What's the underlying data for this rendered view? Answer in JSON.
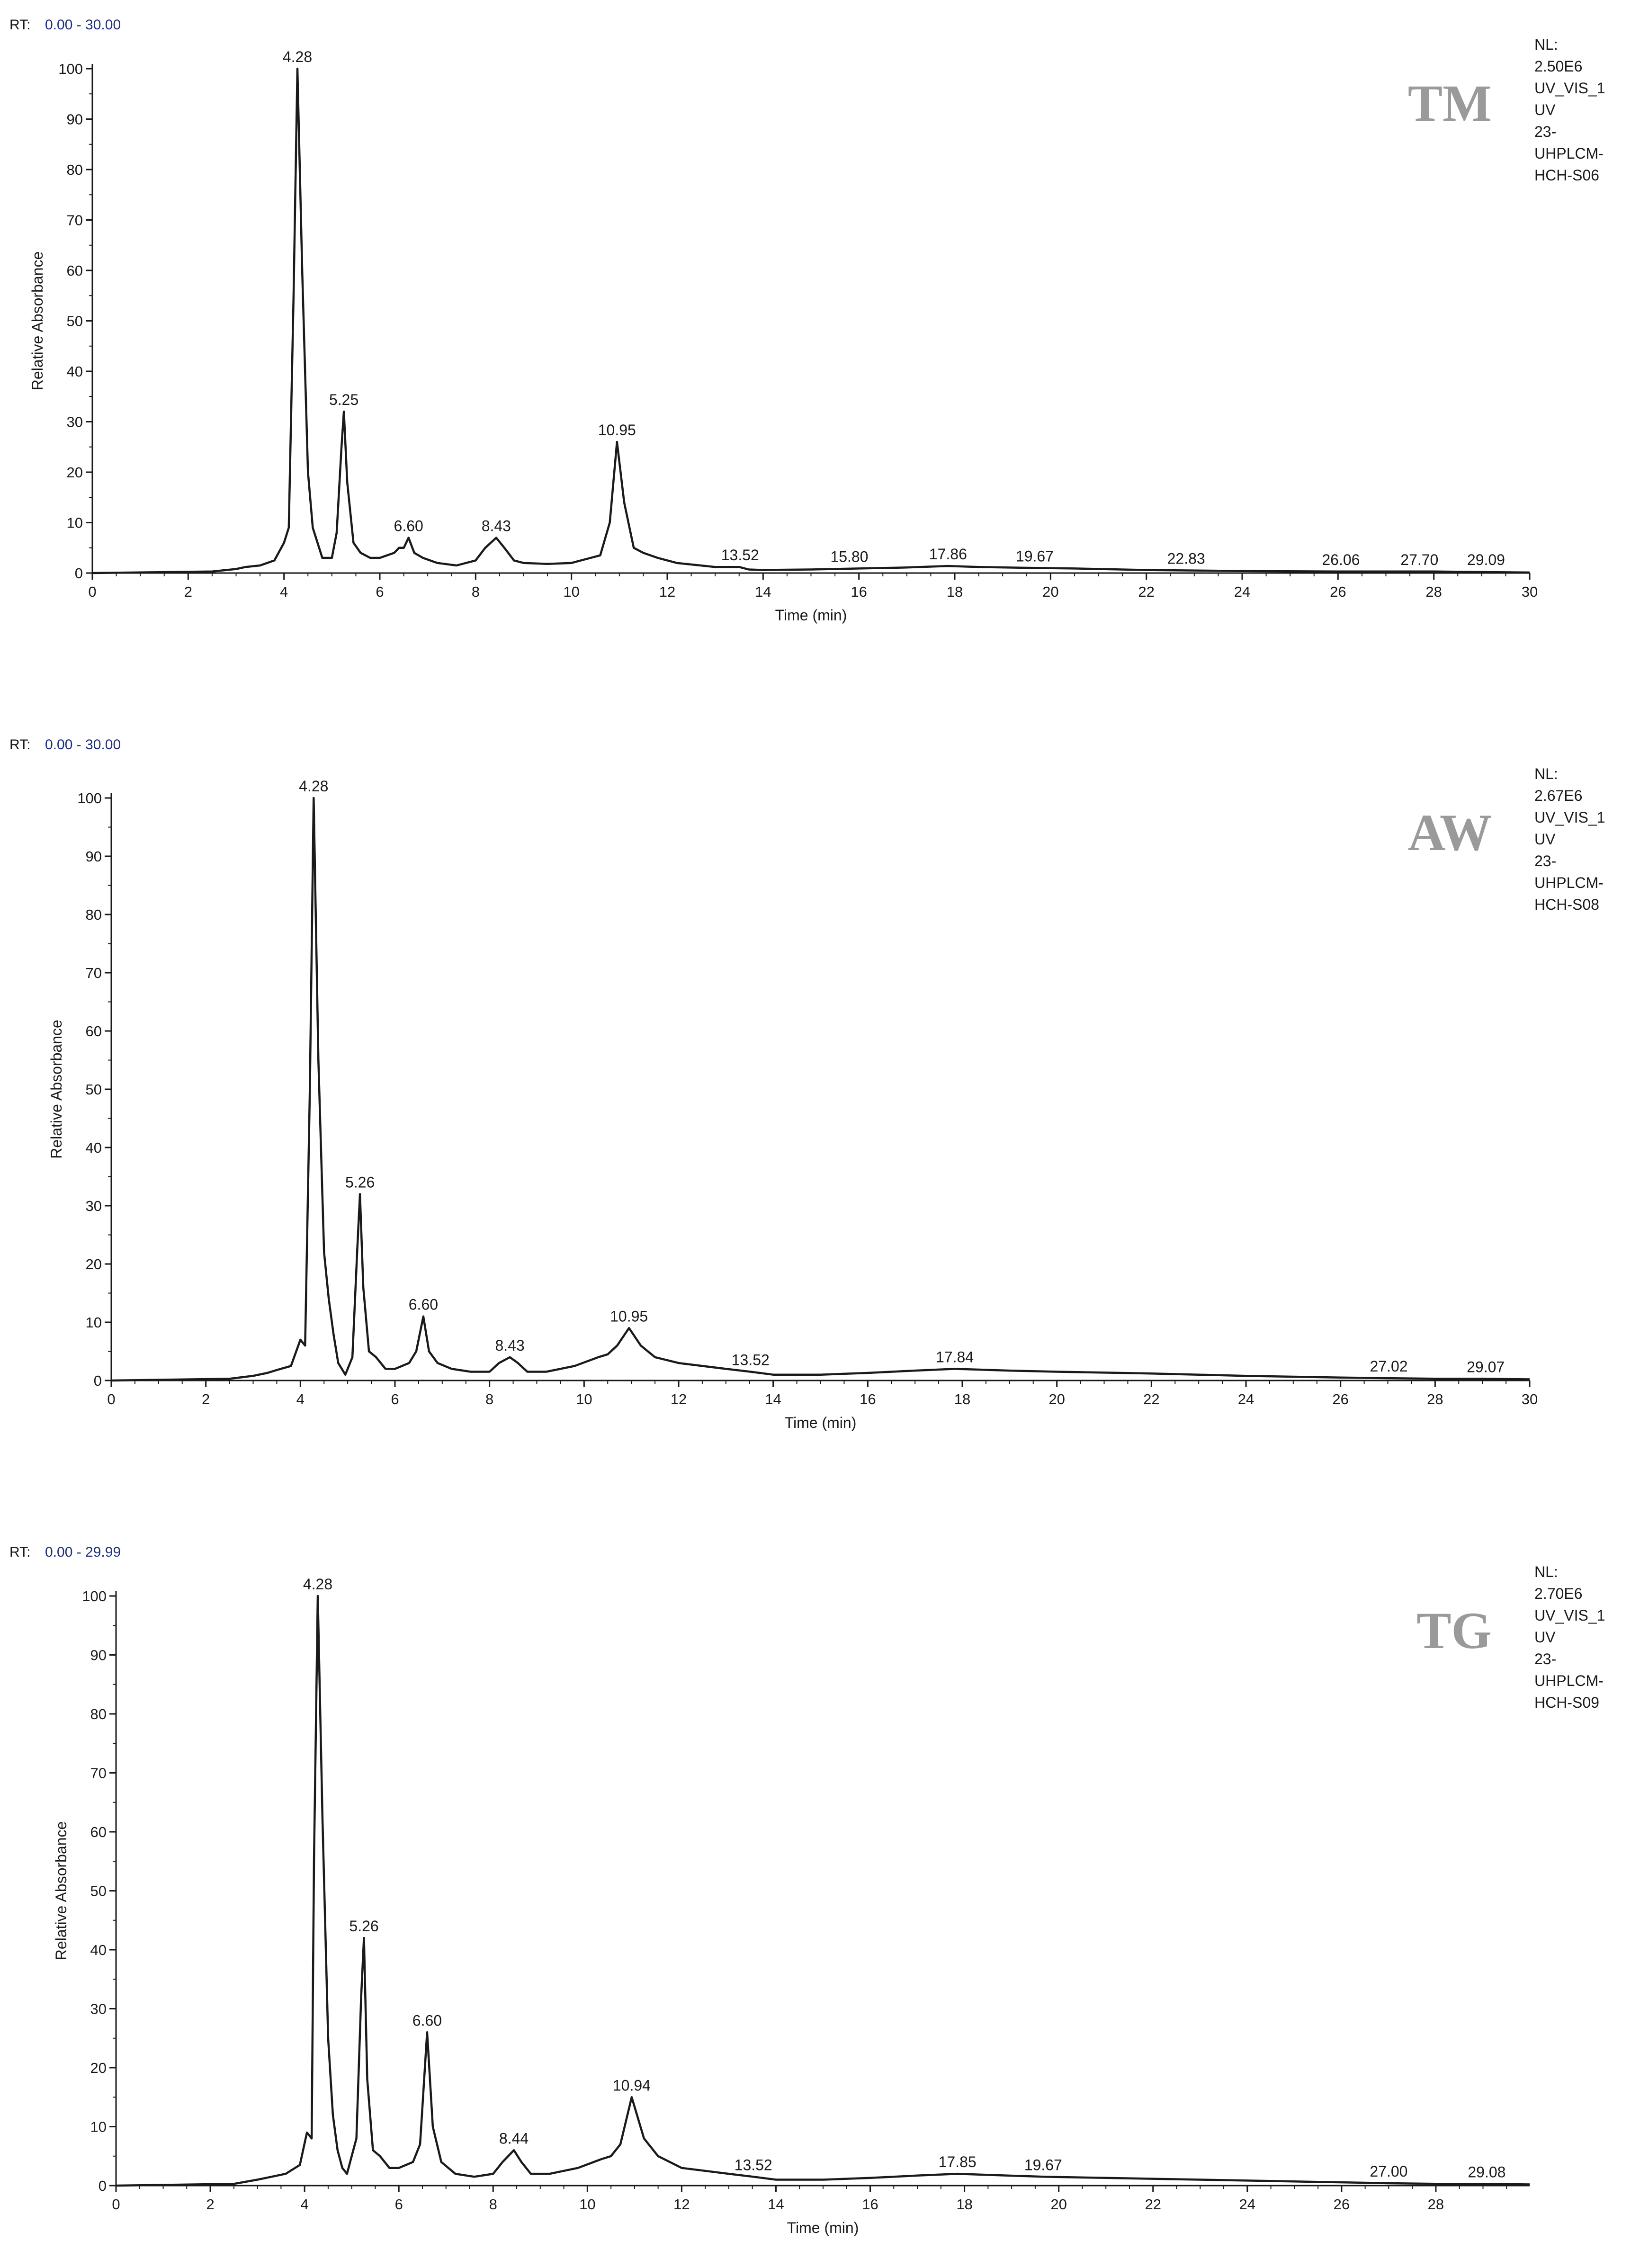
{
  "chart_data": [
    {
      "type": "line",
      "rt_label": "RT:",
      "rt_range": "0.00 - 30.00",
      "sample_label": "TM",
      "info_lines": [
        "NL:",
        "2.50E6",
        "UV_VIS_1",
        "UV",
        "23-",
        "UHPLCM-",
        "HCH-S06"
      ],
      "xlabel": "Time (min)",
      "ylabel": "Relative Absorbance",
      "xlim": [
        0,
        30
      ],
      "ylim": [
        0,
        100
      ],
      "x_ticks": [
        0,
        2,
        4,
        6,
        8,
        10,
        12,
        14,
        16,
        18,
        20,
        22,
        24,
        26,
        28,
        30
      ],
      "y_ticks": [
        0,
        10,
        20,
        30,
        40,
        50,
        60,
        70,
        80,
        90,
        100
      ],
      "peaks": [
        {
          "label": "4.28",
          "x": 4.28,
          "y": 100
        },
        {
          "label": "5.25",
          "x": 5.25,
          "y": 32
        },
        {
          "label": "6.60",
          "x": 6.6,
          "y": 7
        },
        {
          "label": "8.43",
          "x": 8.43,
          "y": 7
        },
        {
          "label": "10.95",
          "x": 10.95,
          "y": 26
        },
        {
          "label": "13.52",
          "x": 13.52,
          "y": 1.2
        },
        {
          "label": "15.80",
          "x": 15.8,
          "y": 0.9
        },
        {
          "label": "17.86",
          "x": 17.86,
          "y": 1.4
        },
        {
          "label": "19.67",
          "x": 19.67,
          "y": 1.0
        },
        {
          "label": "22.83",
          "x": 22.83,
          "y": 0.5
        },
        {
          "label": "26.06",
          "x": 26.06,
          "y": 0.3
        },
        {
          "label": "27.70",
          "x": 27.7,
          "y": 0.3
        },
        {
          "label": "29.09",
          "x": 29.09,
          "y": 0.3
        }
      ],
      "x": [
        0,
        2.5,
        3.0,
        3.2,
        3.5,
        3.8,
        4.0,
        4.1,
        4.2,
        4.28,
        4.38,
        4.5,
        4.6,
        4.7,
        4.8,
        5.0,
        5.1,
        5.2,
        5.25,
        5.32,
        5.45,
        5.6,
        5.8,
        6.0,
        6.3,
        6.4,
        6.5,
        6.6,
        6.72,
        6.9,
        7.2,
        7.6,
        8.0,
        8.2,
        8.43,
        8.6,
        8.8,
        9.0,
        9.5,
        10.0,
        10.4,
        10.6,
        10.8,
        10.95,
        11.1,
        11.3,
        11.5,
        11.8,
        12.2,
        13.0,
        13.5,
        13.7,
        14.0,
        15.0,
        16.0,
        17.0,
        17.86,
        18.5,
        19.67,
        20.5,
        22.0,
        24.0,
        26.0,
        28.0,
        29.0,
        30.0
      ],
      "values": [
        0,
        0.3,
        0.8,
        1.2,
        1.5,
        2.5,
        6,
        9,
        55,
        100,
        60,
        20,
        9,
        6,
        3,
        3,
        8,
        25,
        32,
        18,
        6,
        4,
        3,
        3,
        4,
        5,
        5,
        7,
        4,
        3,
        2,
        1.5,
        2.5,
        5,
        7,
        5,
        2.5,
        2,
        1.8,
        2,
        3,
        3.5,
        10,
        26,
        14,
        5,
        4,
        3,
        2,
        1.2,
        1.2,
        0.7,
        0.6,
        0.7,
        0.9,
        1.1,
        1.4,
        1.2,
        1.0,
        0.9,
        0.6,
        0.4,
        0.3,
        0.3,
        0.2,
        0.1
      ]
    },
    {
      "type": "line",
      "rt_label": "RT:",
      "rt_range": "0.00 - 30.00",
      "sample_label": "AW",
      "info_lines": [
        "NL:",
        "2.67E6",
        "UV_VIS_1",
        "UV",
        "23-",
        "UHPLCM-",
        "HCH-S08"
      ],
      "xlabel": "Time (min)",
      "ylabel": "Relative Absorbance",
      "xlim": [
        0,
        30
      ],
      "ylim": [
        0,
        100
      ],
      "x_ticks": [
        0,
        2,
        4,
        6,
        8,
        10,
        12,
        14,
        16,
        18,
        20,
        22,
        24,
        26,
        28,
        30
      ],
      "y_ticks": [
        0,
        10,
        20,
        30,
        40,
        50,
        60,
        70,
        80,
        90,
        100
      ],
      "peaks": [
        {
          "label": "4.28",
          "x": 4.28,
          "y": 100
        },
        {
          "label": "5.26",
          "x": 5.26,
          "y": 32
        },
        {
          "label": "6.60",
          "x": 6.6,
          "y": 11
        },
        {
          "label": "8.43",
          "x": 8.43,
          "y": 4
        },
        {
          "label": "10.95",
          "x": 10.95,
          "y": 9
        },
        {
          "label": "13.52",
          "x": 13.52,
          "y": 1.5
        },
        {
          "label": "17.84",
          "x": 17.84,
          "y": 2
        },
        {
          "label": "27.02",
          "x": 27.02,
          "y": 0.4
        },
        {
          "label": "29.07",
          "x": 29.07,
          "y": 0.3
        }
      ],
      "x": [
        0,
        2.5,
        3.0,
        3.3,
        3.5,
        3.8,
        4.0,
        4.1,
        4.2,
        4.28,
        4.38,
        4.5,
        4.6,
        4.7,
        4.8,
        4.95,
        5.1,
        5.2,
        5.26,
        5.33,
        5.45,
        5.6,
        5.8,
        6.0,
        6.3,
        6.45,
        6.6,
        6.72,
        6.9,
        7.2,
        7.6,
        8.0,
        8.2,
        8.43,
        8.6,
        8.8,
        9.2,
        9.8,
        10.3,
        10.5,
        10.7,
        10.95,
        11.2,
        11.5,
        12.0,
        13.0,
        13.52,
        14.0,
        15.0,
        16.0,
        17.0,
        17.84,
        19.0,
        20.0,
        22.0,
        24.0,
        26.0,
        27.0,
        28.0,
        29.0,
        30.0
      ],
      "values": [
        0,
        0.3,
        0.8,
        1.3,
        1.8,
        2.5,
        7,
        6,
        50,
        100,
        55,
        22,
        14,
        8,
        3,
        1,
        4,
        22,
        32,
        16,
        5,
        4,
        2,
        2,
        3,
        5,
        11,
        5,
        3,
        2,
        1.5,
        1.5,
        3,
        4,
        3,
        1.5,
        1.5,
        2.5,
        4,
        4.5,
        6,
        9,
        6,
        4,
        3,
        2,
        1.5,
        1,
        1,
        1.3,
        1.7,
        2,
        1.7,
        1.5,
        1.2,
        0.8,
        0.5,
        0.4,
        0.3,
        0.3,
        0.2
      ]
    },
    {
      "type": "line",
      "rt_label": "RT:",
      "rt_range": "0.00 - 29.99",
      "sample_label": "TG",
      "info_lines": [
        "NL:",
        "2.70E6",
        "UV_VIS_1",
        "UV",
        "23-",
        "UHPLCM-",
        "HCH-S09"
      ],
      "xlabel": "Time (min)",
      "ylabel": "Relative Absorbance",
      "xlim": [
        0,
        29.99
      ],
      "ylim": [
        0,
        100
      ],
      "x_ticks": [
        0,
        2,
        4,
        6,
        8,
        10,
        12,
        14,
        16,
        18,
        20,
        22,
        24,
        26,
        28
      ],
      "y_ticks": [
        0,
        10,
        20,
        30,
        40,
        50,
        60,
        70,
        80,
        90,
        100
      ],
      "peaks": [
        {
          "label": "4.28",
          "x": 4.28,
          "y": 100
        },
        {
          "label": "5.26",
          "x": 5.26,
          "y": 42
        },
        {
          "label": "6.60",
          "x": 6.6,
          "y": 26
        },
        {
          "label": "8.44",
          "x": 8.44,
          "y": 6
        },
        {
          "label": "10.94",
          "x": 10.94,
          "y": 15
        },
        {
          "label": "13.52",
          "x": 13.52,
          "y": 1.5
        },
        {
          "label": "17.85",
          "x": 17.85,
          "y": 2
        },
        {
          "label": "19.67",
          "x": 19.67,
          "y": 1.5
        },
        {
          "label": "27.00",
          "x": 27.0,
          "y": 0.4
        },
        {
          "label": "29.08",
          "x": 29.08,
          "y": 0.3
        }
      ],
      "x": [
        0,
        2.5,
        3.0,
        3.3,
        3.6,
        3.9,
        4.05,
        4.15,
        4.2,
        4.28,
        4.38,
        4.5,
        4.6,
        4.7,
        4.8,
        4.9,
        5.1,
        5.2,
        5.26,
        5.33,
        5.45,
        5.6,
        5.8,
        6.0,
        6.3,
        6.45,
        6.6,
        6.72,
        6.9,
        7.2,
        7.6,
        8.0,
        8.2,
        8.44,
        8.6,
        8.8,
        9.2,
        9.8,
        10.3,
        10.5,
        10.7,
        10.94,
        11.2,
        11.5,
        12.0,
        13.0,
        13.52,
        14.0,
        15.0,
        16.0,
        17.0,
        17.85,
        19.67,
        21.0,
        23.0,
        25.0,
        27.0,
        28.0,
        29.0,
        29.99
      ],
      "values": [
        0,
        0.3,
        1.0,
        1.5,
        2.0,
        3.5,
        9,
        8,
        55,
        100,
        62,
        25,
        12,
        6,
        3,
        2,
        8,
        32,
        42,
        18,
        6,
        5,
        3,
        3,
        4,
        7,
        26,
        10,
        4,
        2,
        1.5,
        2,
        4,
        6,
        4,
        2,
        2,
        3,
        4.5,
        5,
        7,
        15,
        8,
        5,
        3,
        2,
        1.5,
        1,
        1,
        1.3,
        1.7,
        2,
        1.5,
        1.3,
        1.0,
        0.7,
        0.4,
        0.3,
        0.3,
        0.2
      ]
    }
  ],
  "colors": {
    "trace": "#1a1a1a",
    "axis": "#1a1a1a",
    "rt_range": "#1f2f7a",
    "sample_label": "#9a9a9a"
  }
}
